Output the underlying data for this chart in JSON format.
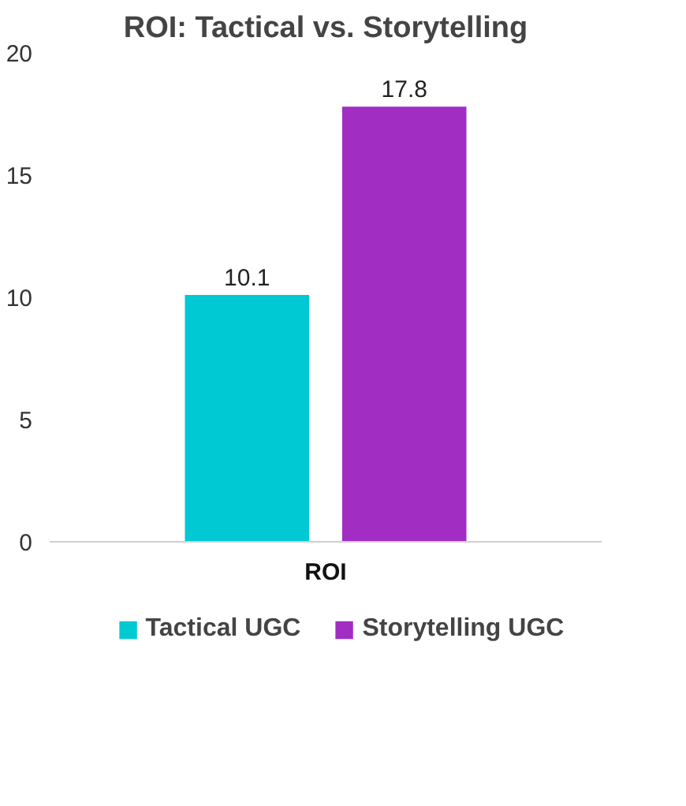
{
  "chart_data": {
    "type": "bar",
    "title": "ROI: Tactical vs. Storytelling",
    "categories": [
      "ROI"
    ],
    "series": [
      {
        "name": "Tactical UGC",
        "color": "#00c9d3",
        "values": [
          10.1
        ]
      },
      {
        "name": "Storytelling UGC",
        "color": "#a12dc3",
        "values": [
          17.8
        ]
      }
    ],
    "ylim": [
      0,
      20
    ],
    "yticks": [
      0,
      5,
      10,
      15,
      20
    ],
    "grid": false,
    "legend": "bottom",
    "data_labels": true
  }
}
